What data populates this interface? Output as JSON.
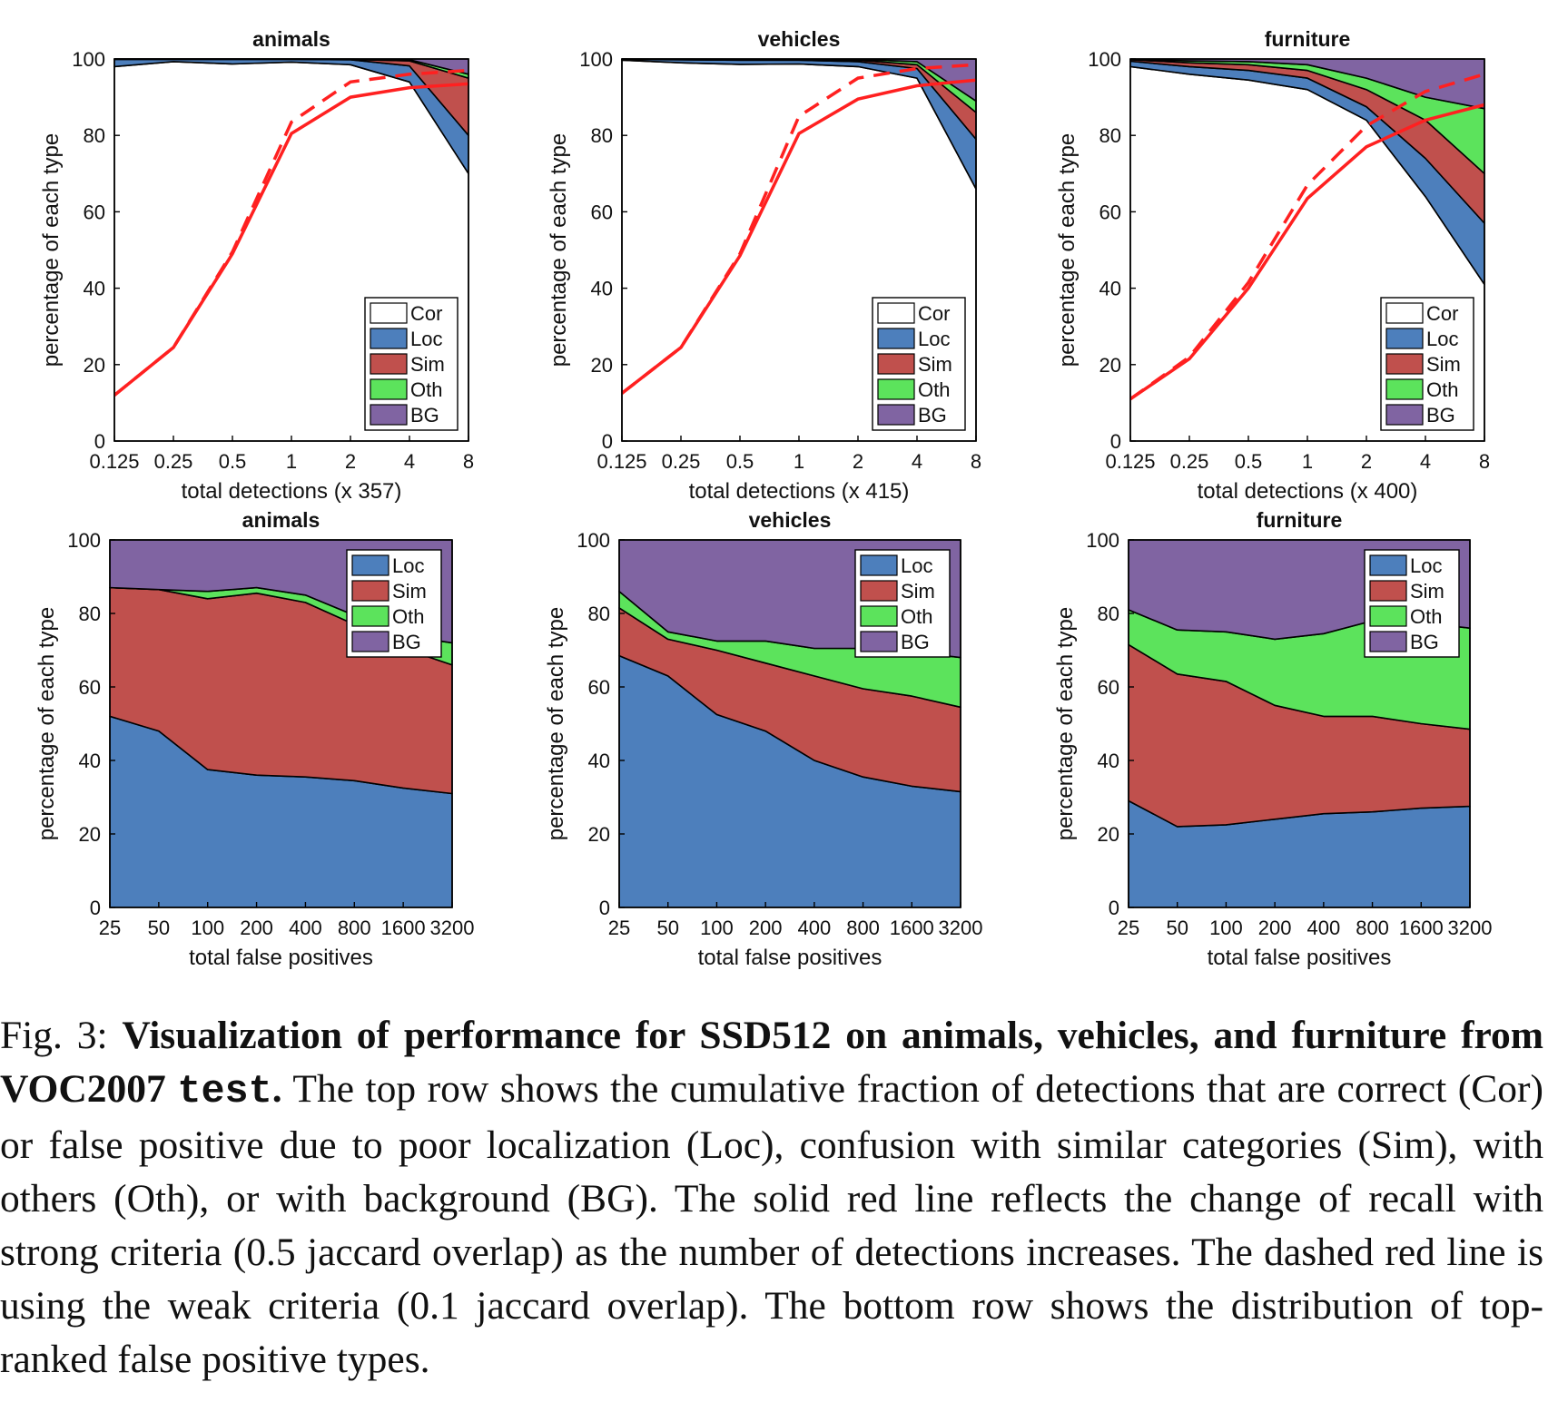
{
  "colors": {
    "Cor": "#ffffff",
    "Loc": "#4d7fbc",
    "Sim": "#c0504d",
    "Oth": "#5ce35c",
    "BG": "#8064a2",
    "recall": "#ff2020"
  },
  "caption": {
    "fig_label": "Fig. 3:",
    "title_bold": "Visualization of performance for SSD512 on animals, vehicles, and furniture from VOC2007",
    "title_mono": "test",
    "title_end": ".",
    "body": "The top row shows the cumulative fraction of detections that are correct (Cor) or false positive due to poor localization (Loc), confusion with similar categories (Sim), with others (Oth), or with background (BG). The solid red line reflects the change of recall with strong criteria (0.5 jaccard overlap) as the number of detections increases. The dashed red line is using the weak criteria (0.1 jaccard overlap). The bottom row shows the distribution of top-ranked false positive types."
  },
  "chart_data": [
    {
      "type": "area",
      "id": "top-animals",
      "title": "animals",
      "xlabel": "total detections (x 357)",
      "ylabel": "percentage of each type",
      "x_ticks": [
        "0.125",
        "0.25",
        "0.5",
        "1",
        "2",
        "4",
        "8"
      ],
      "y_ticks": [
        "0",
        "20",
        "40",
        "60",
        "80",
        "100"
      ],
      "ylim": [
        0,
        100
      ],
      "legend": [
        "Cor",
        "Loc",
        "Sim",
        "Oth",
        "BG"
      ],
      "legend_position": "bottom-right",
      "series": [
        {
          "name": "Cor",
          "values": [
            98,
            99.3,
            98.7,
            99.2,
            98.5,
            94,
            70
          ]
        },
        {
          "name": "Loc",
          "values": [
            1.9,
            0.6,
            1.2,
            0.7,
            1.3,
            4.2,
            10
          ]
        },
        {
          "name": "Sim",
          "values": [
            0.05,
            0.05,
            0.05,
            0.05,
            0.1,
            1.3,
            15
          ]
        },
        {
          "name": "Oth",
          "values": [
            0.03,
            0.03,
            0.03,
            0.03,
            0.05,
            0.3,
            1
          ]
        },
        {
          "name": "BG",
          "values": [
            0.02,
            0.02,
            0.02,
            0.02,
            0.05,
            0.2,
            4
          ]
        }
      ],
      "recall_strong": [
        12,
        24.5,
        49,
        80.5,
        90,
        92.5,
        93.5
      ],
      "recall_weak": [
        12,
        24.5,
        49.5,
        83.5,
        94,
        96,
        97
      ]
    },
    {
      "type": "area",
      "id": "top-vehicles",
      "title": "vehicles",
      "xlabel": "total detections (x 415)",
      "ylabel": "percentage of each type",
      "x_ticks": [
        "0.125",
        "0.25",
        "0.5",
        "1",
        "2",
        "4",
        "8"
      ],
      "y_ticks": [
        "0",
        "20",
        "40",
        "60",
        "80",
        "100"
      ],
      "ylim": [
        0,
        100
      ],
      "legend": [
        "Cor",
        "Loc",
        "Sim",
        "Oth",
        "BG"
      ],
      "legend_position": "bottom-right",
      "series": [
        {
          "name": "Cor",
          "values": [
            99.7,
            99,
            98.6,
            98.7,
            98,
            95,
            66
          ]
        },
        {
          "name": "Loc",
          "values": [
            0.2,
            0.8,
            1.1,
            1,
            1.3,
            2.5,
            13
          ]
        },
        {
          "name": "Sim",
          "values": [
            0.05,
            0.1,
            0.15,
            0.15,
            0.4,
            1,
            7
          ]
        },
        {
          "name": "Oth",
          "values": [
            0.03,
            0.05,
            0.08,
            0.08,
            0.2,
            0.8,
            3
          ]
        },
        {
          "name": "BG",
          "values": [
            0.02,
            0.05,
            0.07,
            0.07,
            0.1,
            0.7,
            11
          ]
        }
      ],
      "recall_strong": [
        12.5,
        24.5,
        48.5,
        80.5,
        89.5,
        93,
        94.5
      ],
      "recall_weak": [
        12.5,
        24.5,
        49,
        85,
        95,
        97.5,
        98.5
      ]
    },
    {
      "type": "area",
      "id": "top-furniture",
      "title": "furniture",
      "xlabel": "total detections (x 400)",
      "ylabel": "percentage of each type",
      "x_ticks": [
        "0.125",
        "0.25",
        "0.5",
        "1",
        "2",
        "4",
        "8"
      ],
      "y_ticks": [
        "0",
        "20",
        "40",
        "60",
        "80",
        "100"
      ],
      "ylim": [
        0,
        100
      ],
      "legend": [
        "Cor",
        "Loc",
        "Sim",
        "Oth",
        "BG"
      ],
      "legend_position": "bottom-right",
      "series": [
        {
          "name": "Cor",
          "values": [
            98,
            96,
            94.5,
            92,
            84,
            64,
            41
          ]
        },
        {
          "name": "Loc",
          "values": [
            1.4,
            2,
            2.5,
            3,
            3.5,
            10,
            16
          ]
        },
        {
          "name": "Sim",
          "values": [
            0.4,
            1,
            1.5,
            2,
            4.5,
            10,
            13
          ]
        },
        {
          "name": "Oth",
          "values": [
            0.1,
            0.5,
            0.8,
            1.5,
            3,
            6,
            17
          ]
        },
        {
          "name": "BG",
          "values": [
            0.1,
            0.5,
            0.7,
            1.5,
            5,
            10,
            13
          ]
        }
      ],
      "recall_strong": [
        11,
        21.5,
        40,
        63.5,
        77,
        84,
        88
      ],
      "recall_weak": [
        11,
        22,
        41.5,
        67,
        82.5,
        91.5,
        96
      ]
    },
    {
      "type": "area",
      "id": "bottom-animals",
      "title": "animals",
      "xlabel": "total false positives",
      "ylabel": "percentage of each type",
      "x_ticks": [
        "25",
        "50",
        "100",
        "200",
        "400",
        "800",
        "1600",
        "3200"
      ],
      "y_ticks": [
        "0",
        "20",
        "40",
        "60",
        "80",
        "100"
      ],
      "ylim": [
        0,
        100
      ],
      "legend": [
        "Loc",
        "Sim",
        "Oth",
        "BG"
      ],
      "legend_position": "top-right",
      "series": [
        {
          "name": "Loc",
          "values": [
            52,
            48,
            37.5,
            36,
            35.5,
            34.5,
            32.5,
            31
          ]
        },
        {
          "name": "Sim",
          "values": [
            35,
            38.5,
            46.5,
            49.5,
            47.5,
            42.5,
            38,
            35
          ]
        },
        {
          "name": "Oth",
          "values": [
            0,
            0,
            2,
            1.5,
            2,
            2.5,
            3.5,
            6
          ]
        },
        {
          "name": "BG",
          "values": [
            13,
            13.5,
            14,
            13,
            15,
            20.5,
            26,
            28
          ]
        }
      ]
    },
    {
      "type": "area",
      "id": "bottom-vehicles",
      "title": "vehicles",
      "xlabel": "total false positives",
      "ylabel": "percentage of each type",
      "x_ticks": [
        "25",
        "50",
        "100",
        "200",
        "400",
        "800",
        "1600",
        "3200"
      ],
      "y_ticks": [
        "0",
        "20",
        "40",
        "60",
        "80",
        "100"
      ],
      "ylim": [
        0,
        100
      ],
      "legend": [
        "Loc",
        "Sim",
        "Oth",
        "BG"
      ],
      "legend_position": "top-right",
      "series": [
        {
          "name": "Loc",
          "values": [
            68.5,
            63,
            52.5,
            48,
            40,
            35.5,
            33,
            31.5
          ]
        },
        {
          "name": "Sim",
          "values": [
            13,
            10,
            17.5,
            18.5,
            23,
            24,
            24.5,
            23
          ]
        },
        {
          "name": "Oth",
          "values": [
            4.5,
            2,
            2.5,
            6,
            7.5,
            11,
            12,
            13.5
          ]
        },
        {
          "name": "BG",
          "values": [
            14,
            25,
            27.5,
            27.5,
            29.5,
            29.5,
            30.5,
            32
          ]
        }
      ]
    },
    {
      "type": "area",
      "id": "bottom-furniture",
      "title": "furniture",
      "xlabel": "total false positives",
      "ylabel": "percentage of each type",
      "x_ticks": [
        "25",
        "50",
        "100",
        "200",
        "400",
        "800",
        "1600",
        "3200"
      ],
      "y_ticks": [
        "0",
        "20",
        "40",
        "60",
        "80",
        "100"
      ],
      "ylim": [
        0,
        100
      ],
      "legend": [
        "Loc",
        "Sim",
        "Oth",
        "BG"
      ],
      "legend_position": "top-right",
      "series": [
        {
          "name": "Loc",
          "values": [
            29,
            22,
            22.5,
            24,
            25.5,
            26,
            27,
            27.5
          ]
        },
        {
          "name": "Sim",
          "values": [
            42.5,
            41.5,
            39,
            31,
            26.5,
            26,
            23,
            21
          ]
        },
        {
          "name": "Oth",
          "values": [
            9.5,
            12,
            13.5,
            18,
            22.5,
            26,
            27.5,
            27.5
          ]
        },
        {
          "name": "BG",
          "values": [
            19,
            24.5,
            25,
            27,
            25.5,
            22,
            22.5,
            24
          ]
        }
      ]
    }
  ]
}
